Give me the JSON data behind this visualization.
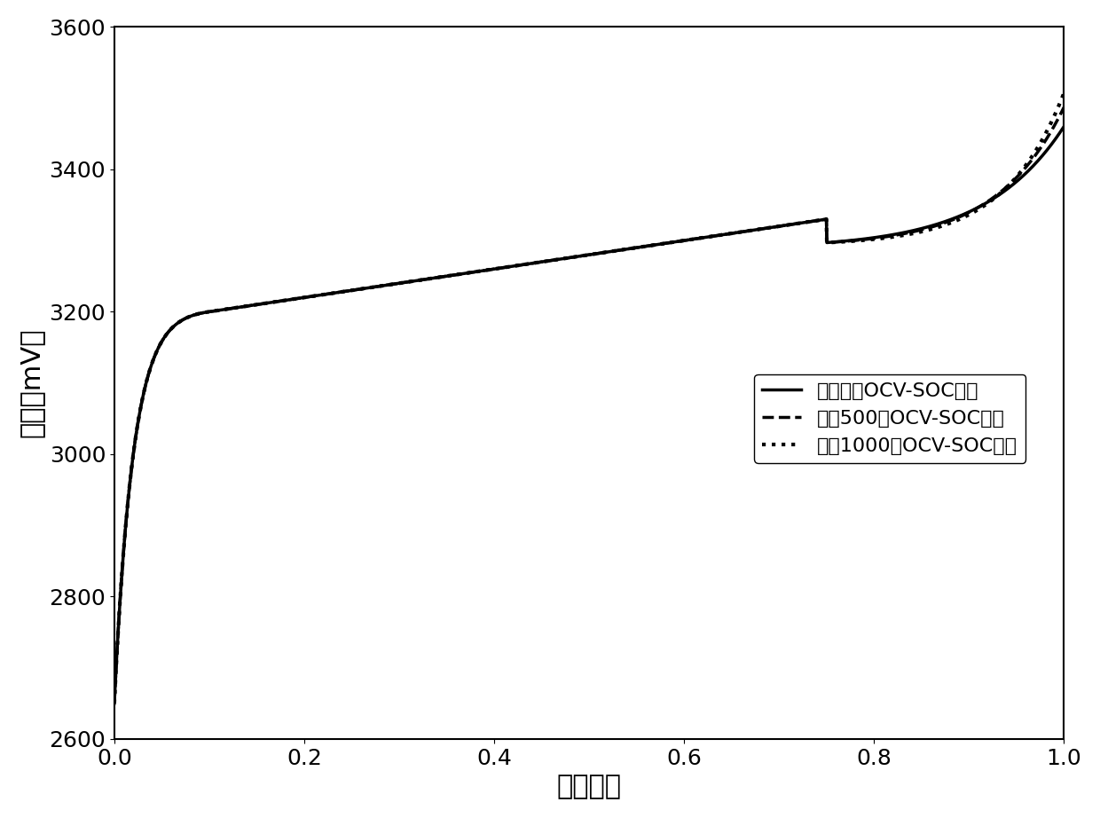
{
  "title": "",
  "xlabel": "荷电状态",
  "ylabel": "电压（mV）",
  "xlim": [
    0.0,
    1.0
  ],
  "ylim": [
    2600,
    3600
  ],
  "xticks": [
    0.0,
    0.2,
    0.4,
    0.6,
    0.8,
    1.0
  ],
  "yticks": [
    2600,
    2800,
    3000,
    3200,
    3400,
    3600
  ],
  "legend_labels": [
    "初始时刻OCV-SOC曲线",
    "循环500次OCV-SOC曲线",
    "循环1000次OCV-SOC曲线"
  ],
  "line_styles": [
    "solid",
    "dashed",
    "dotted"
  ],
  "line_color": "#000000",
  "line_width": 2.5,
  "background_color": "#ffffff",
  "xlabel_fontsize": 22,
  "ylabel_fontsize": 22,
  "tick_fontsize": 18,
  "legend_fontsize": 16
}
